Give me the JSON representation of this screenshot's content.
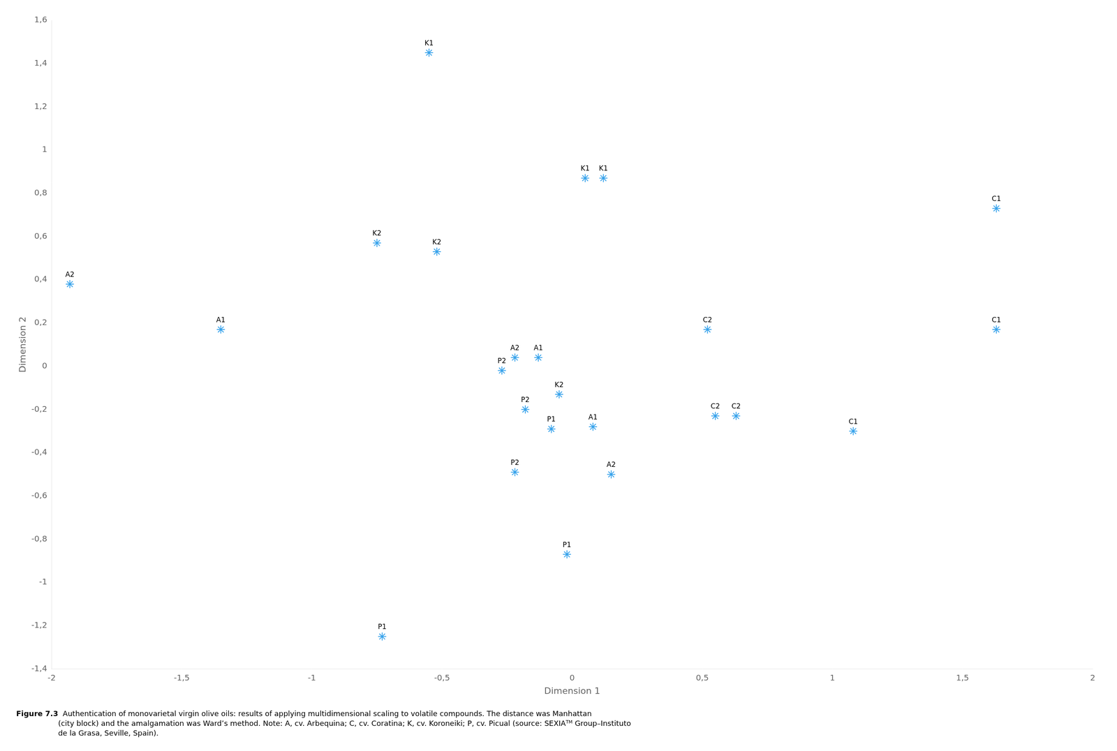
{
  "chart_data": {
    "type": "scatter",
    "xlabel": "Dimension 1",
    "ylabel": "Dimension 2",
    "marker": "star",
    "grid": false,
    "labels": [
      "K1",
      "K1",
      "K1",
      "K2",
      "K2",
      "K2",
      "A2",
      "A1",
      "A2",
      "A1",
      "A1",
      "A2",
      "P2",
      "P2",
      "P2",
      "P1",
      "P1",
      "P1",
      "C1",
      "C1",
      "C1",
      "C2",
      "C2",
      "C2"
    ],
    "x": [
      -0.55,
      0.05,
      0.12,
      -0.75,
      -0.52,
      -0.05,
      -1.93,
      -1.35,
      -0.22,
      -0.13,
      0.08,
      0.15,
      -0.27,
      -0.18,
      -0.22,
      -0.08,
      -0.02,
      -0.73,
      1.63,
      1.63,
      1.08,
      0.52,
      0.55,
      0.63
    ],
    "values": [
      1.45,
      0.87,
      0.87,
      0.57,
      0.53,
      -0.13,
      0.38,
      0.17,
      0.04,
      0.04,
      -0.28,
      -0.5,
      -0.02,
      -0.2,
      -0.49,
      -0.29,
      -0.87,
      -1.25,
      0.73,
      0.17,
      -0.3,
      0.17,
      -0.23,
      -0.23
    ],
    "xlim": [
      -2.0,
      2.0
    ],
    "ylim": [
      -1.4,
      1.6
    ],
    "xticks": [
      -2,
      {
        "value": -1.5,
        "label": "-1,5"
      },
      -1,
      {
        "value": -0.5,
        "label": "-0,5"
      },
      0,
      {
        "value": 0.5,
        "label": "0,5"
      },
      1,
      {
        "value": 1.5,
        "label": "1,5"
      },
      2
    ],
    "yticks": [
      {
        "value": -1.4,
        "label": "-1,4"
      },
      {
        "value": -1.2,
        "label": "-1,2"
      },
      -1,
      {
        "value": -0.8,
        "label": "-0,8"
      },
      {
        "value": -0.6,
        "label": "-0,6"
      },
      {
        "value": -0.4,
        "label": "-0,4"
      },
      {
        "value": -0.2,
        "label": "-0,2"
      },
      0,
      {
        "value": 0.2,
        "label": "0,2"
      },
      {
        "value": 0.4,
        "label": "0,4"
      },
      {
        "value": 0.6,
        "label": "0,6"
      },
      {
        "value": 0.8,
        "label": "0,8"
      },
      1,
      {
        "value": 1.2,
        "label": "1,2"
      },
      {
        "value": 1.4,
        "label": "1,4"
      },
      {
        "value": 1.6,
        "label": "1,6"
      }
    ],
    "caption_label": "Figure 7.3",
    "caption": "  Authentication of monovarietal virgin olive oils: results of applying multidimensional scaling to volatile compounds. The distance was Manhattan\n(city block) and the amalgamation was Ward’s method. Note: A, cv. Arbequina; C, cv. Coratina; K, cv. Koroneiki; P, cv. Picual (source: SEXIAᵀᴹ Group–Instituto\nde la Grasa, Seville, Spain)."
  }
}
